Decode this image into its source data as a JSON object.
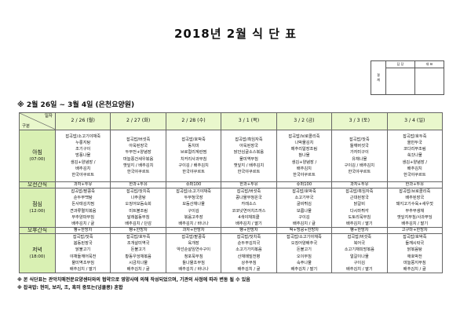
{
  "title": "2018년 2월 식 단 표",
  "approval": {
    "label": "결\n재",
    "col1": "담 당",
    "col2": "대 표"
  },
  "subtitle": "※ 2월 26일 ~ 3월 4일 (은천요양원)",
  "corner": {
    "top": "일자",
    "bottom": "구분"
  },
  "dates": [
    "2 / 26 (월)",
    "2 / 27 (화)",
    "2 / 28 (수)",
    "3 / 1 (목)",
    "3 / 2 (금)",
    "3 / 3 (토)",
    "3 / 4 (일)"
  ],
  "rows": [
    {
      "label": "아침",
      "time": "(07:00)",
      "type": "meal",
      "cells": [
        [
          "잡곡밥/소고기야채죽",
          "누룽지탕",
          "조기구이",
          "방풍나물",
          "생김+양념장 /",
          "배추김치",
          "한국야쿠르트"
        ],
        [
          "잡곡밥/버섯죽",
          "아욱된장국",
          "두부전+양념장",
          "마늘쫑건새우볶음",
          "깻잎지 / 배추김치",
          "한국야쿠르트"
        ],
        [
          "잡곡밥/호박죽",
          "동치미",
          "브로컬리계란찜",
          "치커리사과무침",
          "구이김 / 배추김치",
          "한국야쿠르트"
        ],
        [
          "잡곡밥/흑임자죽",
          "아욱된장국",
          "닭안심굴소스볶음",
          "물미역무침",
          "깻잎지 / 배추김치",
          "한국야쿠르트"
        ],
        [
          "잡곡밥/브로콜리죽",
          "나박물김치",
          "메추리알장조림",
          "참나물",
          "생김+양념장 /",
          "배추김치",
          "한국야쿠르트"
        ],
        [
          "잡곡밥/잣죽",
          "들깨버섯국",
          "가자미구이",
          "유채나물",
          "구이김 / 배추김치",
          "한국야쿠르트"
        ],
        [
          "잡곡밥/호두죽",
          "올만두국",
          "코다리무조림",
          "쑥갓나물",
          "생김+양념장 /",
          "배추김치",
          "한국야쿠르트"
        ]
      ]
    },
    {
      "label": "오전간식",
      "type": "snack",
      "cells": [
        [
          "과자+두유"
        ],
        [
          "한과+두유"
        ],
        [
          "슈퍼100"
        ],
        [
          "한과+두유"
        ],
        [
          "슈퍼100"
        ],
        [
          "과자+두유"
        ],
        [
          "한과+두유"
        ]
      ]
    },
    {
      "label": "점심",
      "time": "(12:00)",
      "type": "meal",
      "cells": [
        [
          "잡곡밥/팥콩죽",
          "순두부백탕",
          "돈사태김치찜",
          "견과류멸치볶음",
          "부추양파무침",
          "배추김치 / 귤"
        ],
        [
          "잡곡밥/잣치죽",
          "나주곰탕",
          "오징어모듬숙회",
          "미트볼조림",
          "달래봄동무침",
          "배추김치 / 단감"
        ],
        [
          "잡곡밥/소고기야채죽",
          "두부청국장",
          "모듬산채나물",
          "구이김",
          "볶음고추장",
          "배추김치 / 바나나"
        ],
        [
          "잡곡밥/버섯죽",
          "콩나물무청온국",
          "카레소스",
          "코코넛연어치즈까스",
          "4색야채피클",
          "배추김치 / 딸기"
        ],
        [
          "잡곡밥/호박죽",
          "소고기무국",
          "굴비튀김",
          "보름나물",
          "구이김",
          "배추김치 / 귤"
        ],
        [
          "잡곡밥/흑임자죽",
          "근대된장국",
          "닭갈비",
          "다시마튀각",
          "도토리묵무침",
          "배추김치 / 딸기"
        ],
        [
          "잡곡밥/브로콜리죽",
          "배추된장국",
          "돼지고기수육+새우젓",
          "부추무생채",
          "깻잎지무침/사과푸딩",
          "배추김치 / 딸기"
        ]
      ]
    },
    {
      "label": "오후간식",
      "type": "snack",
      "cells": [
        [
          "빵+한방차"
        ],
        [
          "빵+한방차"
        ],
        [
          "과자+한방차"
        ],
        [
          "빵+한방차"
        ],
        [
          "떡+땅콩+한방차"
        ],
        [
          "빵+한방차"
        ],
        [
          "고구마+한방차"
        ]
      ]
    },
    {
      "label": "저녁",
      "time": "(18:00)",
      "type": "meal",
      "cells": [
        [
          "잡곡밥/잣죽",
          "봄동된장국",
          "닭불고기",
          "야채들깨어묵전",
          "물미역초무침",
          "배추김치 / 딸기"
        ],
        [
          "잡곡밥/호두죽",
          "조개살미역국",
          "돈불고기",
          "황동우엉채볶음",
          "시금치나물",
          "배추김치 / 귤"
        ],
        [
          "잡곡밥/팥콩죽",
          "육개장",
          "약선순살임연수구이",
          "청포묵무침",
          "돌나물초무침",
          "배추김치 / 바나나"
        ],
        [
          "잡곡밥/잣치죽",
          "순두부김치국",
          "소고기가지볶음",
          "산채메밀전병",
          "상추무침",
          "배추김치 / 귤"
        ],
        [
          "잡곡밥/소고기야채죽",
          "오징어양배추국",
          "돈불고기",
          "오이무침",
          "숙주나물",
          "배추김치 / 딸기"
        ],
        [
          "잡곡밥/버섯죽",
          "북어국",
          "소고기채피망볶음",
          "얼갈이나물",
          "구이김",
          "배추김치 / 딸기"
        ],
        [
          "잡곡밥/호박죽",
          "들깨시락국",
          "닭볶음탕",
          "애호박전",
          "마늘쫑지무침",
          "배추김치 / 귤"
        ]
      ]
    }
  ],
  "notes": [
    "※ 본 식단표는 관악치매전문요양센터와의 협약으로 영양사에 의해 작성되었으며, 기관의 사정에 따라 변동 될 수 있음",
    "※ 잡곡밥: 현미, 보리, 조, 흑미 중또는(넝쿨콩) 혼합"
  ],
  "colors": {
    "header_bg": "#e9f7cc",
    "label_bg": "#d9f0b3",
    "border": "#666666"
  }
}
